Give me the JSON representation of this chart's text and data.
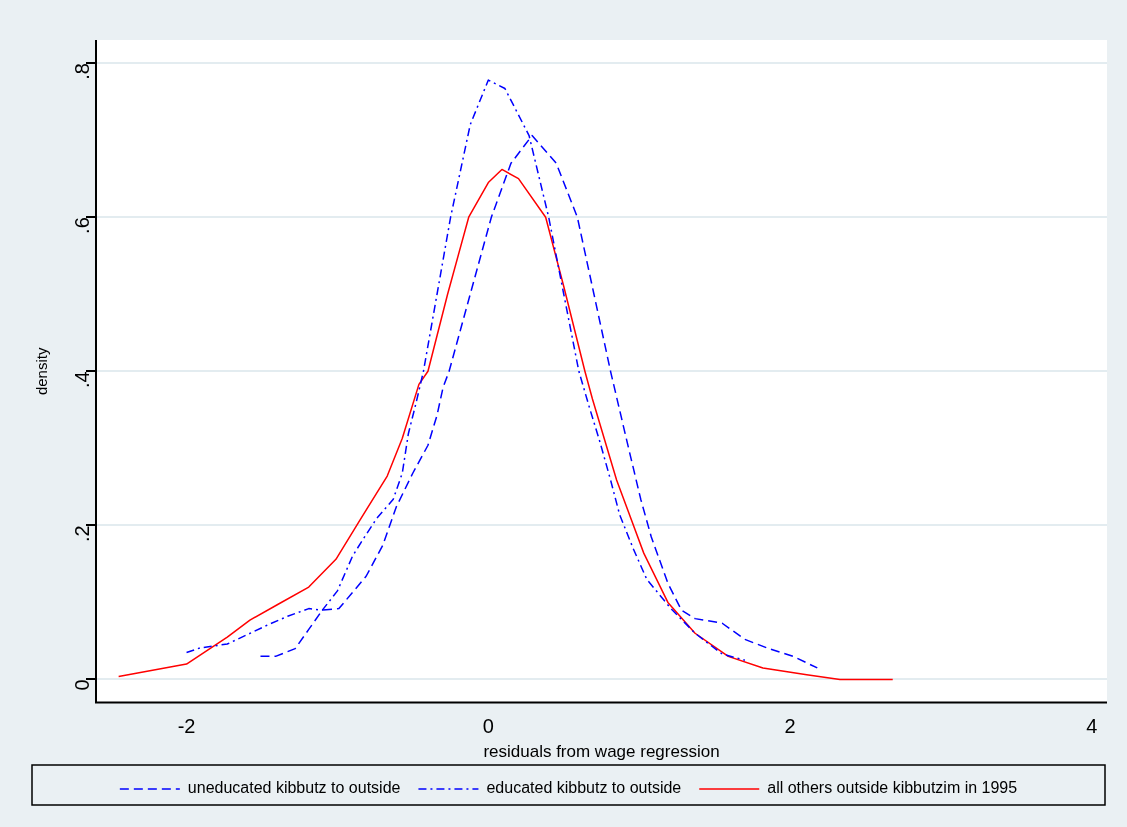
{
  "chart_data": {
    "type": "line",
    "xlabel": "residuals from wage regression",
    "ylabel": "density",
    "xlim": [
      -2.6,
      4.1
    ],
    "ylim": [
      -0.03,
      0.83
    ],
    "xticks": [
      -2,
      0,
      2,
      4
    ],
    "yticks": [
      0,
      {
        "value": 0.2,
        "label": ".2"
      },
      {
        "value": 0.4,
        "label": ".4"
      },
      {
        "value": 0.6,
        "label": ".6"
      },
      {
        "value": 0.8,
        "label": ".8"
      }
    ],
    "grid": "y",
    "legend": "bottom",
    "marker": "none",
    "series": [
      {
        "name": "uneducated kibbutz to outside",
        "color": "#0000ff",
        "line_style": "dashed",
        "x": [
          -1.51,
          -1.41,
          -1.28,
          -1.19,
          -1.1,
          -0.99,
          -0.81,
          -0.7,
          -0.61,
          -0.5,
          -0.4,
          -0.34,
          -0.3,
          -0.26,
          -0.12,
          0.02,
          0.15,
          0.29,
          0.45,
          0.59,
          0.7,
          0.81,
          0.92,
          1.01,
          1.08,
          1.19,
          1.28,
          1.37,
          1.55,
          1.7,
          1.86,
          2.02,
          2.18
        ],
        "values": [
          0.03,
          0.03,
          0.04,
          0.065,
          0.09,
          0.092,
          0.134,
          0.174,
          0.224,
          0.268,
          0.304,
          0.343,
          0.379,
          0.4,
          0.5,
          0.6,
          0.67,
          0.706,
          0.67,
          0.6,
          0.5,
          0.4,
          0.308,
          0.234,
          0.185,
          0.125,
          0.09,
          0.079,
          0.073,
          0.052,
          0.04,
          0.03,
          0.015
        ]
      },
      {
        "name": "educated kibbutz to outside",
        "color": "#0000ff",
        "line_style": "dashdot",
        "x": [
          -2,
          -1.91,
          -1.73,
          -1.6,
          -1.46,
          -1.33,
          -1.19,
          -1.1,
          -1,
          -0.9,
          -0.84,
          -0.74,
          -0.63,
          -0.57,
          -0.53,
          -0.48,
          -0.43,
          -0.34,
          -0.25,
          -0.12,
          0,
          0.11,
          0.27,
          0.4,
          0.5,
          0.6,
          0.67,
          0.74,
          0.81,
          0.87,
          0.96,
          1.05,
          1.21,
          1.37,
          1.55,
          1.7
        ],
        "values": [
          0.035,
          0.041,
          0.046,
          0.058,
          0.071,
          0.082,
          0.092,
          0.09,
          0.115,
          0.16,
          0.179,
          0.209,
          0.234,
          0.268,
          0.319,
          0.358,
          0.4,
          0.5,
          0.6,
          0.72,
          0.778,
          0.767,
          0.706,
          0.6,
          0.5,
          0.4,
          0.353,
          0.308,
          0.259,
          0.214,
          0.17,
          0.13,
          0.092,
          0.06,
          0.033,
          0.025
        ]
      },
      {
        "name": "all others outside kibbutzim in 1995",
        "color": "#ff0000",
        "line_style": "solid",
        "x": [
          -2.45,
          -2,
          -1.73,
          -1.58,
          -1.39,
          -1.19,
          -1.01,
          -0.86,
          -0.67,
          -0.57,
          -0.46,
          -0.4,
          -0.27,
          -0.13,
          0,
          0.09,
          0.2,
          0.38,
          0.5,
          0.64,
          0.69,
          0.85,
          1.03,
          1.19,
          1.37,
          1.59,
          1.82,
          2.11,
          2.33,
          2.68
        ],
        "values": [
          0.004,
          0.02,
          0.055,
          0.077,
          0.098,
          0.12,
          0.156,
          0.204,
          0.264,
          0.313,
          0.383,
          0.4,
          0.5,
          0.6,
          0.645,
          0.662,
          0.65,
          0.6,
          0.51,
          0.4,
          0.364,
          0.259,
          0.164,
          0.1,
          0.06,
          0.03,
          0.015,
          0.006,
          0,
          0
        ]
      }
    ]
  }
}
